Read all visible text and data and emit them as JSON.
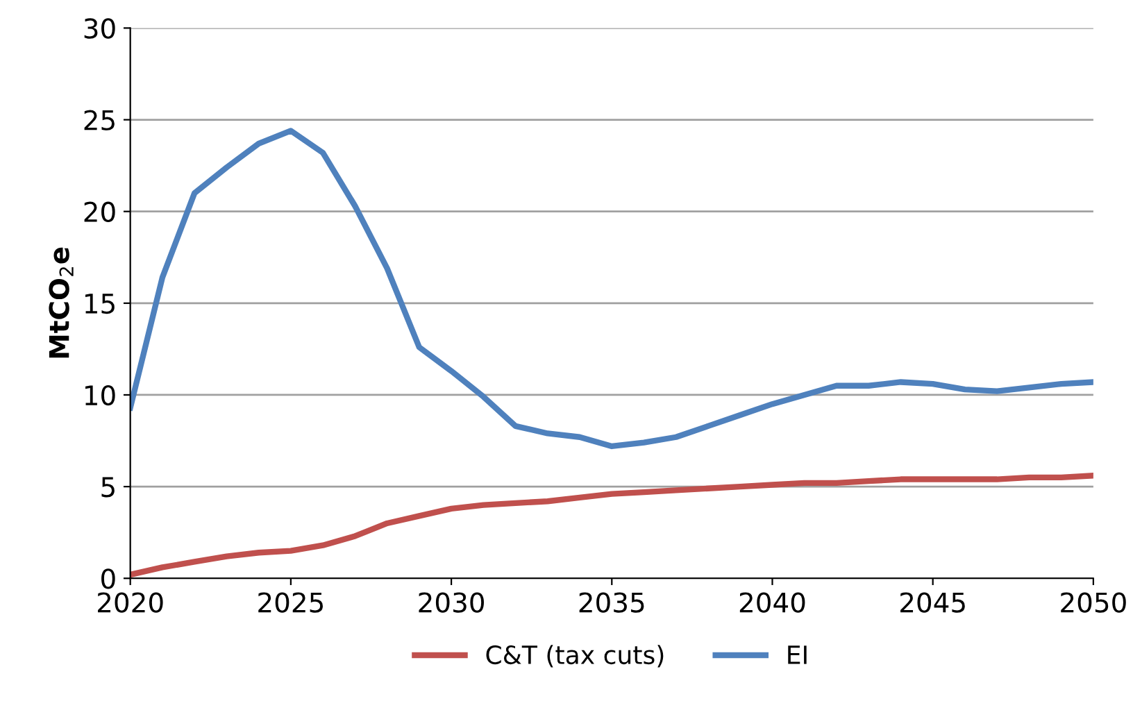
{
  "chart_data": {
    "type": "line",
    "ylabel": "MtCO$_{2}$e",
    "x": [
      2020,
      2021,
      2022,
      2023,
      2024,
      2025,
      2026,
      2027,
      2028,
      2029,
      2030,
      2031,
      2032,
      2033,
      2034,
      2035,
      2036,
      2037,
      2038,
      2039,
      2040,
      2041,
      2042,
      2043,
      2044,
      2045,
      2046,
      2047,
      2048,
      2049,
      2050
    ],
    "series": [
      {
        "name": "C&T (tax cuts)",
        "color": "#c0504d",
        "values": [
          0.2,
          0.6,
          0.9,
          1.2,
          1.4,
          1.5,
          1.8,
          2.3,
          3.0,
          3.4,
          3.8,
          4.0,
          4.1,
          4.2,
          4.4,
          4.6,
          4.7,
          4.8,
          4.9,
          5.0,
          5.1,
          5.2,
          5.2,
          5.3,
          5.4,
          5.4,
          5.4,
          5.4,
          5.5,
          5.5,
          5.6
        ]
      },
      {
        "name": "EI",
        "color": "#4f81bd",
        "values": [
          9.3,
          16.4,
          21.0,
          22.4,
          23.7,
          24.4,
          23.2,
          20.3,
          16.9,
          12.6,
          11.3,
          9.9,
          8.3,
          7.9,
          7.7,
          7.2,
          7.4,
          7.7,
          8.3,
          8.9,
          9.5,
          10.0,
          10.5,
          10.5,
          10.7,
          10.6,
          10.3,
          10.2,
          10.4,
          10.6,
          10.7
        ]
      }
    ],
    "xlim": [
      2020,
      2050
    ],
    "xticks": [
      2020,
      2025,
      2030,
      2035,
      2040,
      2045,
      2050
    ],
    "ylim": [
      0,
      30
    ],
    "yticks": [
      0,
      5,
      10,
      15,
      20,
      25,
      30
    ],
    "grid": "y",
    "legend": "bottom",
    "marker": "none",
    "line_style": "solid"
  }
}
